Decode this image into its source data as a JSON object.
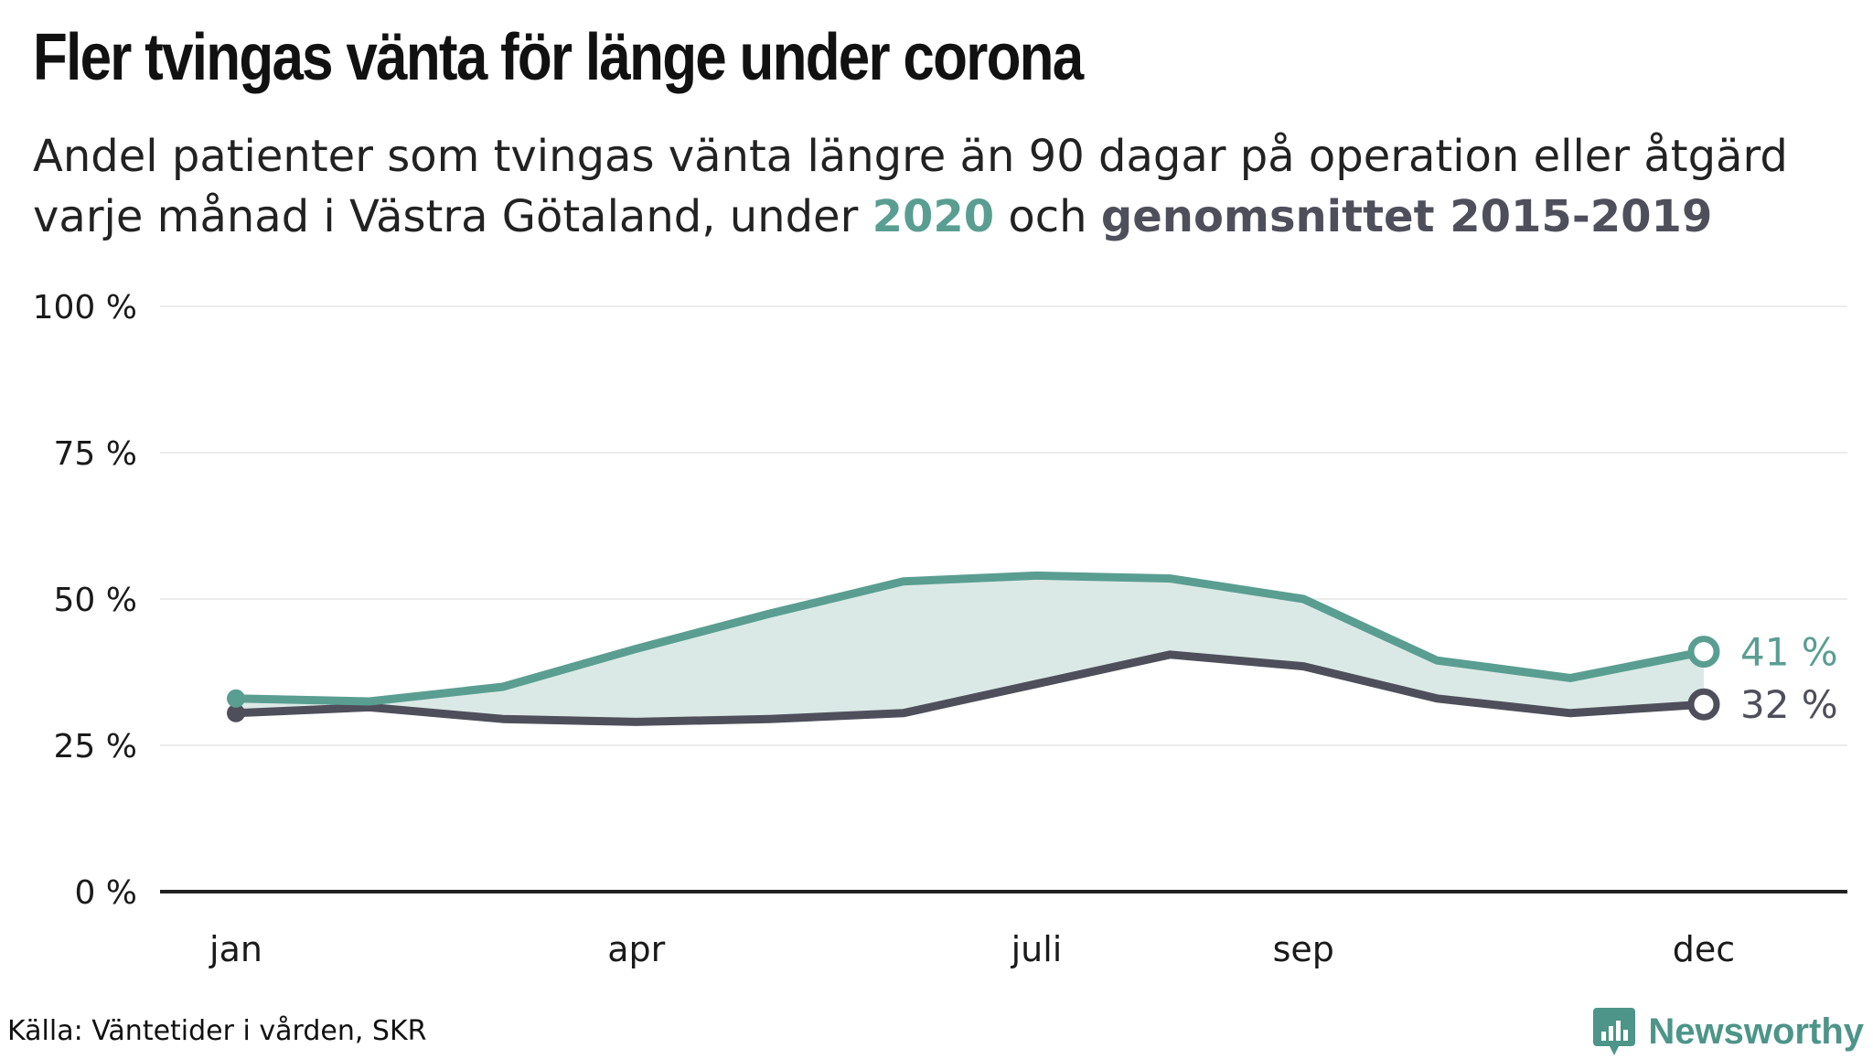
{
  "chart_data": {
    "type": "area",
    "title": "Fler tvingas vänta för länge under corona",
    "subtitle": {
      "line1": "Andel patienter som tvingas vänta längre än 90 dagar på operation eller åtgärd",
      "line2_pre": "varje månad i Västra Götaland, under ",
      "highlight_2020": "2020",
      "line2_mid": " och ",
      "highlight_avg": "genomsnittet 2015-2019"
    },
    "months": [
      1,
      2,
      3,
      4,
      5,
      6,
      7,
      8,
      9,
      10,
      11,
      12
    ],
    "x_tick_labels": [
      {
        "month": 1,
        "label": "jan"
      },
      {
        "month": 4,
        "label": "apr"
      },
      {
        "month": 7,
        "label": "juli"
      },
      {
        "month": 9,
        "label": "sep"
      },
      {
        "month": 12,
        "label": "dec"
      }
    ],
    "y_ticks": [
      {
        "value": 0,
        "label": "0 %"
      },
      {
        "value": 25,
        "label": "25 %"
      },
      {
        "value": 50,
        "label": "50 %"
      },
      {
        "value": 75,
        "label": "75 %"
      },
      {
        "value": 100,
        "label": "100 %"
      }
    ],
    "ylim": [
      0,
      100
    ],
    "xlim": [
      1,
      12
    ],
    "grid": true,
    "series": [
      {
        "key": "y2020",
        "name": "2020",
        "values": [
          33,
          32.5,
          35,
          41.5,
          47.5,
          53,
          54,
          53.5,
          50,
          39.5,
          36.5,
          41
        ],
        "color": "#5a9e92",
        "end_label": "41 %"
      },
      {
        "key": "avg",
        "name": "genomsnittet 2015-2019",
        "values": [
          30.5,
          31.5,
          29.5,
          29,
          29.5,
          30.5,
          35.5,
          40.5,
          38.5,
          33,
          30.5,
          32
        ],
        "color": "#4f4f5c",
        "end_label": "32 %"
      }
    ],
    "band_color": "#dbe9e6",
    "axis_color": "#222222",
    "grid_color": "#e6e6e6"
  },
  "footer": {
    "source": "Källa: Väntetider i vården, SKR",
    "brand": "Newsworthy",
    "brand_color": "#4c9588"
  }
}
